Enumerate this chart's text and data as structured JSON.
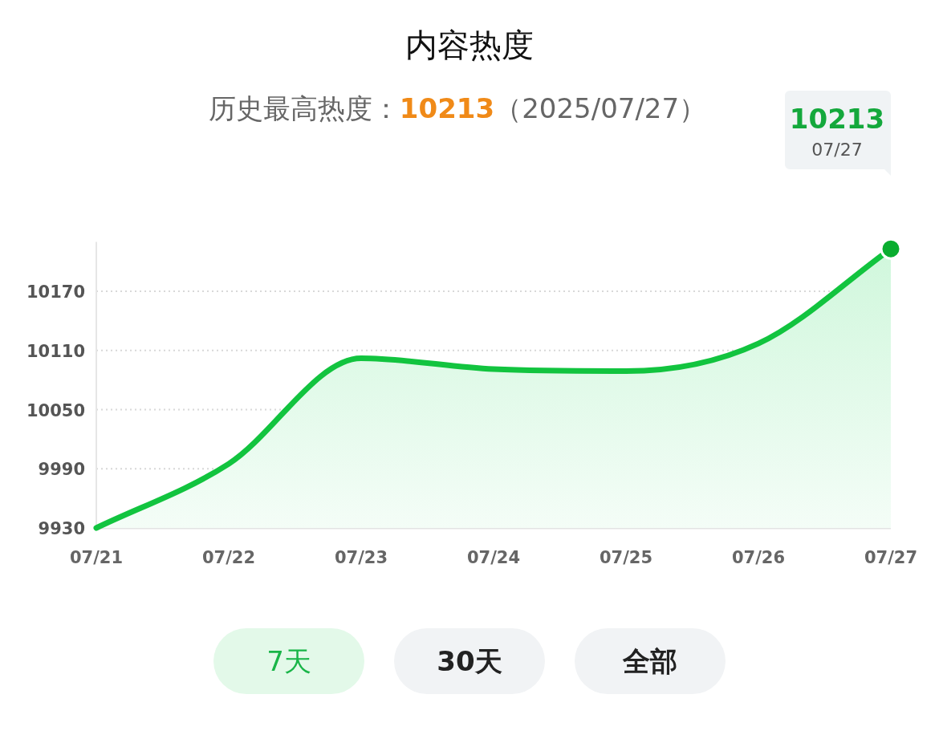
{
  "chart_data": {
    "type": "area",
    "title": "内容热度",
    "subtitle": "历史最高热度：**10213**（2025/07/27）",
    "categories": [
      "07/21",
      "07/22",
      "07/23",
      "07/24",
      "07/25",
      "07/26",
      "07/27"
    ],
    "series": [
      {
        "color": "#12c43f",
        "values": [
          9930,
          9995,
          10102,
          10091,
          10089,
          10117,
          10213
        ]
      },
      {
        "type": "scatter",
        "color": "#0aad2f",
        "marker": "circle",
        "x": [
          "07/27"
        ],
        "values": [
          10213
        ]
      }
    ],
    "annotations": [
      "10213",
      "07/27",
      "7天",
      "30天",
      "全部"
    ],
    "ylim": [
      9930,
      10220
    ],
    "yticks": [
      9930,
      9990,
      10050,
      10110,
      10170
    ],
    "grid": "y",
    "line_style": "solid"
  }
}
